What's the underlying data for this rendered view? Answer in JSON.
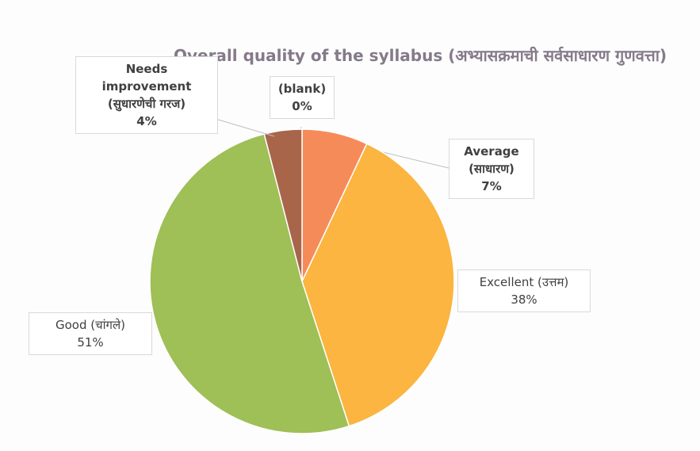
{
  "chart_data": {
    "type": "pie",
    "title": "Overall quality of the syllabus (अभ्यासक्रमाची सर्वसाधारण गुणवत्ता)",
    "categories": [
      "(blank)",
      "Average (साधारण)",
      "Excellent (उत्तम)",
      "Good (चांगले)",
      "Needs improvement (सुधारणेची गरज)"
    ],
    "values": [
      0,
      7,
      38,
      51,
      4
    ],
    "value_labels": [
      "0%",
      "7%",
      "38%",
      "51%",
      "4%"
    ],
    "colors": [
      "#7f7f7f",
      "#f68b5a",
      "#fbb540",
      "#9fbf57",
      "#a8654a"
    ]
  }
}
